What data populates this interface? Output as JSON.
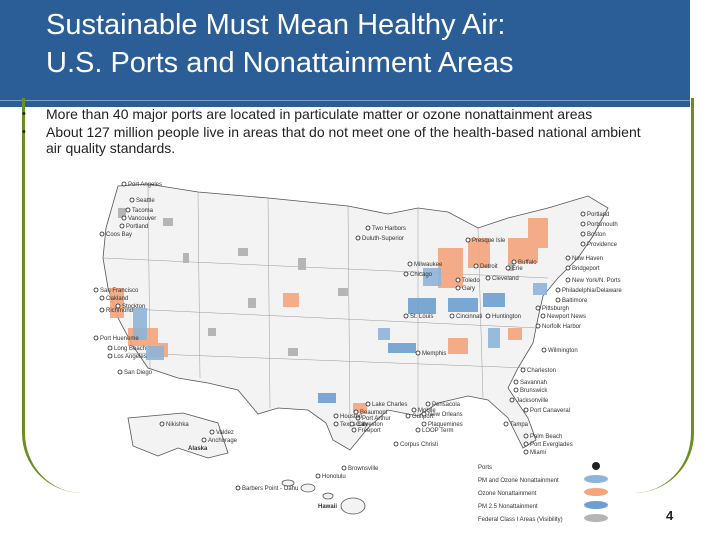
{
  "slide": {
    "title_line1": "Sustainable Must Mean Healthy Air:",
    "title_line2": "U.S. Ports and Nonattainment Areas",
    "bullets": [
      "More than 40 major ports are located in particulate matter or ozone nonattainment areas",
      "About 127 million people live in areas that do not meet one of the health-based national ambient air quality standards."
    ],
    "page_number": "4"
  },
  "map": {
    "labels": {
      "alaska": "Alaska",
      "hawaii": "Hawaii"
    },
    "cities": [
      "Port Angeles",
      "Seattle",
      "Tacoma",
      "Vancouver",
      "Portland",
      "Coos Bay",
      "Two Harbors",
      "Duluth-Superior",
      "Presque Isle",
      "Portland",
      "Portsmouth",
      "Boston",
      "Providence",
      "New Haven",
      "Bridgeport",
      "New York/N. Ports",
      "Philadelphia/Delaware",
      "Baltimore",
      "Milwaukee",
      "Chicago",
      "Detroit",
      "Toledo",
      "Cleveland",
      "Buffalo",
      "Erie",
      "Gary",
      "St. Louis",
      "Cincinnati",
      "Huntington",
      "Pittsburgh",
      "Newport News",
      "Norfolk Harbor",
      "Wilmington",
      "Memphis",
      "Charleston",
      "Savannah",
      "Brunswick",
      "Jacksonville",
      "Port Canaveral",
      "Tampa",
      "Palm Beach",
      "Port Everglades",
      "Miami",
      "San Francisco",
      "Oakland",
      "Stockton",
      "Richmond",
      "Port Hueneme",
      "Long Beach",
      "Los Angeles",
      "San Diego",
      "Lake Charles",
      "Beaumont",
      "Port Arthur",
      "Houston",
      "Texas City",
      "Galveston",
      "Freeport",
      "Corpus Christi",
      "Brownsville",
      "Mobile",
      "Pensacola",
      "Gulfport",
      "New Orleans",
      "Plaquemines",
      "LOOP Term",
      "Nikishka",
      "Valdez",
      "Anchorage",
      "Honolulu",
      "Barbers Point - Oahu"
    ],
    "legend": [
      {
        "label": "Ports",
        "color": "#222222"
      },
      {
        "label": "PM and Ozone Nonattainment",
        "color": "#8fb4d9"
      },
      {
        "label": "Ozone Nonattainment",
        "color": "#f4a57c"
      },
      {
        "label": "PM 2.5 Nonattainment",
        "color": "#6f9fd0"
      },
      {
        "label": "Federal Class I Areas (Visibility)",
        "color": "#b5b5b5"
      }
    ]
  }
}
